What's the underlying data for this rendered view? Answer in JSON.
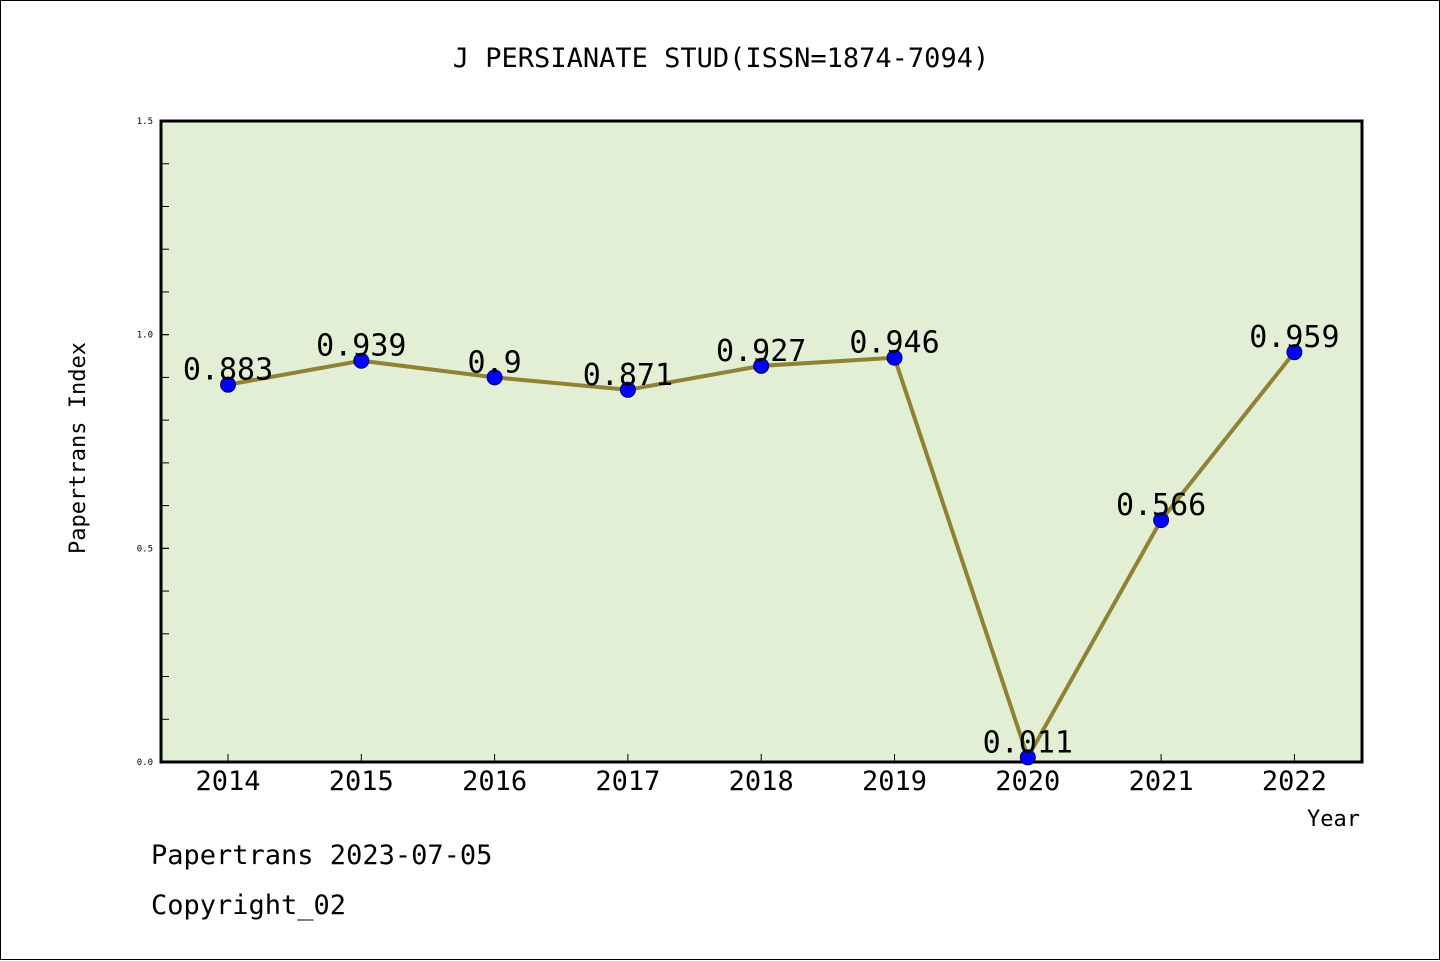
{
  "chart_data": {
    "type": "line",
    "title": "J PERSIANATE STUD(ISSN=1874-7094)",
    "xlabel": "Year",
    "ylabel": "Papertrans Index",
    "categories": [
      "2014",
      "2015",
      "2016",
      "2017",
      "2018",
      "2019",
      "2020",
      "2021",
      "2022"
    ],
    "series": [
      {
        "values": [
          0.883,
          0.939,
          0.9,
          0.871,
          0.927,
          0.946,
          0.011,
          0.566,
          0.959
        ],
        "labels": [
          "0.883",
          "0.939",
          "0.9",
          "0.871",
          "0.927",
          "0.946",
          "0.011",
          "0.566",
          "0.959"
        ]
      }
    ],
    "ylim": [
      0.0,
      1.5
    ],
    "yticks": [
      "0.0",
      "0.5",
      "1.0",
      "1.5"
    ],
    "grid": false,
    "colors": {
      "plot_background": "#e2efd5",
      "line": "#8f8235",
      "marker": "#0000ff"
    }
  },
  "footer": {
    "line1": "Papertrans 2023-07-05",
    "line2": "Copyright_02"
  }
}
